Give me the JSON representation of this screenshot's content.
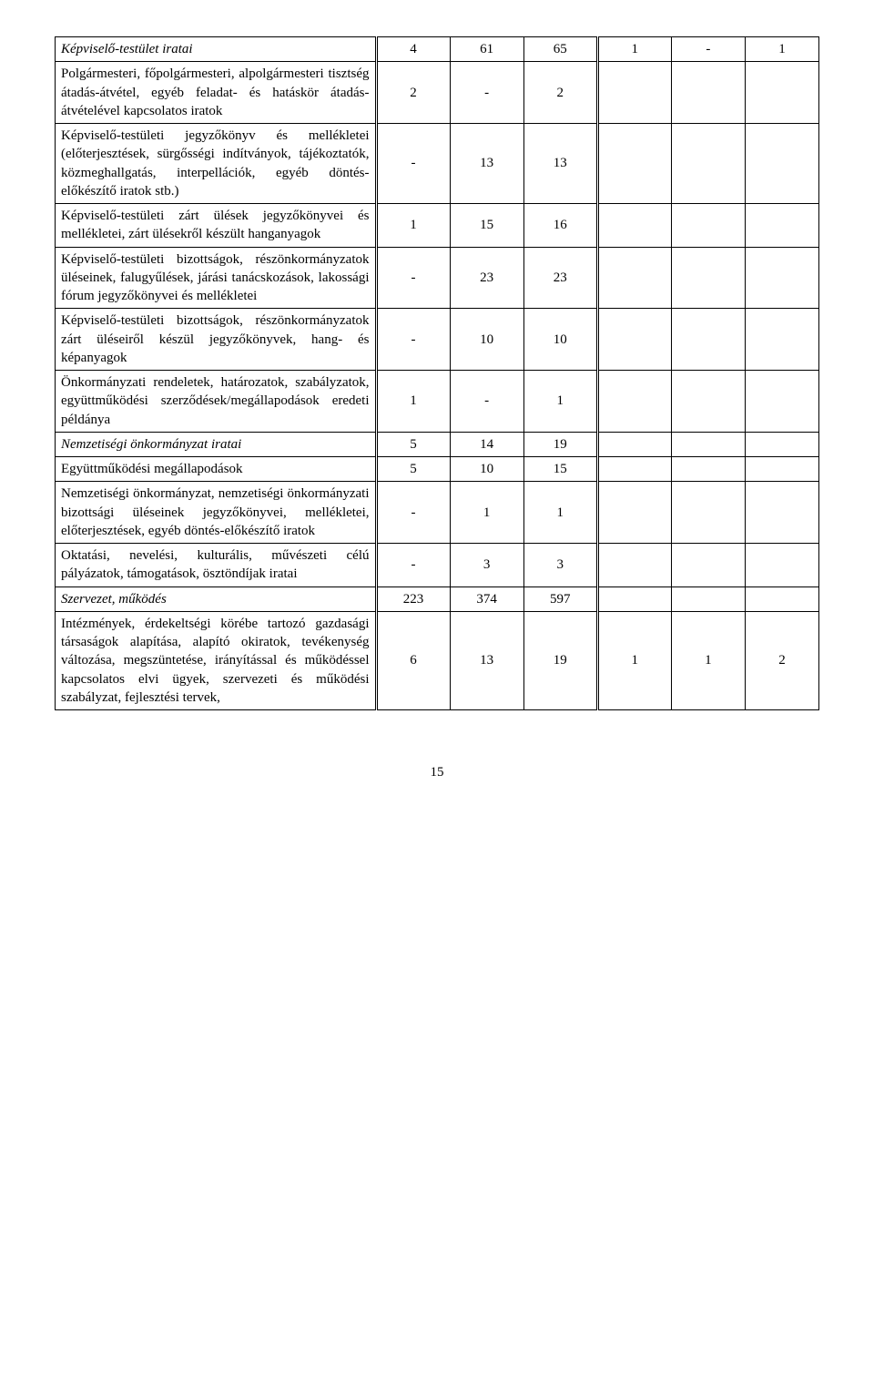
{
  "rows": [
    {
      "desc": "Képviselő-testület iratai",
      "italic": true,
      "c": [
        "4",
        "61",
        "65",
        "1",
        "-",
        "1"
      ]
    },
    {
      "desc": "Polgármesteri, főpolgármesteri, alpolgármesteri tisztség átadás-átvétel, egyéb feladat- és hatáskör átadás-átvételével kapcsolatos iratok",
      "c": [
        "2",
        "-",
        "2",
        "",
        "",
        ""
      ]
    },
    {
      "desc": "Képviselő-testületi jegyzőkönyv és mellékletei (előterjesztések, sürgősségi indítványok, tájékoztatók, közmeghallgatás, interpellációk, egyéb döntés-előkészítő iratok stb.)",
      "c": [
        "-",
        "13",
        "13",
        "",
        "",
        ""
      ]
    },
    {
      "desc": "Képviselő-testületi zárt ülések jegyzőkönyvei és mellékletei, zárt ülésekről készült hanganyagok",
      "c": [
        "1",
        "15",
        "16",
        "",
        "",
        ""
      ]
    },
    {
      "desc": "Képviselő-testületi bizottságok, részönkormányzatok üléseinek, falugyűlések, járási tanácskozások, lakossági fórum jegyzőkönyvei és mellékletei",
      "c": [
        "-",
        "23",
        "23",
        "",
        "",
        ""
      ]
    },
    {
      "desc": "Képviselő-testületi bizottságok, részönkormányzatok zárt üléseiről készül jegyzőkönyvek, hang- és képanyagok",
      "c": [
        "-",
        "10",
        "10",
        "",
        "",
        ""
      ]
    },
    {
      "desc": "Önkormányzati rendeletek, határozatok, szabályzatok, együttműködési szerződések/megállapodások eredeti példánya",
      "c": [
        "1",
        "-",
        "1",
        "",
        "",
        ""
      ]
    },
    {
      "desc": "Nemzetiségi önkormányzat iratai",
      "italic": true,
      "c": [
        "5",
        "14",
        "19",
        "",
        "",
        ""
      ]
    },
    {
      "desc": "Együttműködési megállapodások",
      "c": [
        "5",
        "10",
        "15",
        "",
        "",
        ""
      ]
    },
    {
      "desc": "Nemzetiségi önkormányzat, nemzetiségi önkormányzati bizottsági üléseinek jegyzőkönyvei, mellékletei, előterjesztések, egyéb döntés-előkészítő iratok",
      "c": [
        "-",
        "1",
        "1",
        "",
        "",
        ""
      ]
    },
    {
      "desc": "Oktatási, nevelési, kulturális, művészeti célú pályázatok, támogatások, ösztöndíjak iratai",
      "c": [
        "-",
        "3",
        "3",
        "",
        "",
        ""
      ]
    },
    {
      "desc": "Szervezet, működés",
      "italic": true,
      "c": [
        "223",
        "374",
        "597",
        "",
        "",
        ""
      ]
    },
    {
      "desc": "Intézmények, érdekeltségi körébe tartozó gazdasági társaságok alapítása, alapító okiratok, tevékenység változása, megszüntetése, irányítással és működéssel kapcsolatos elvi ügyek, szervezeti és működési szabályzat, fejlesztési tervek,",
      "c": [
        "6",
        "13",
        "19",
        "1",
        "1",
        "2"
      ]
    }
  ],
  "page_number": "15"
}
